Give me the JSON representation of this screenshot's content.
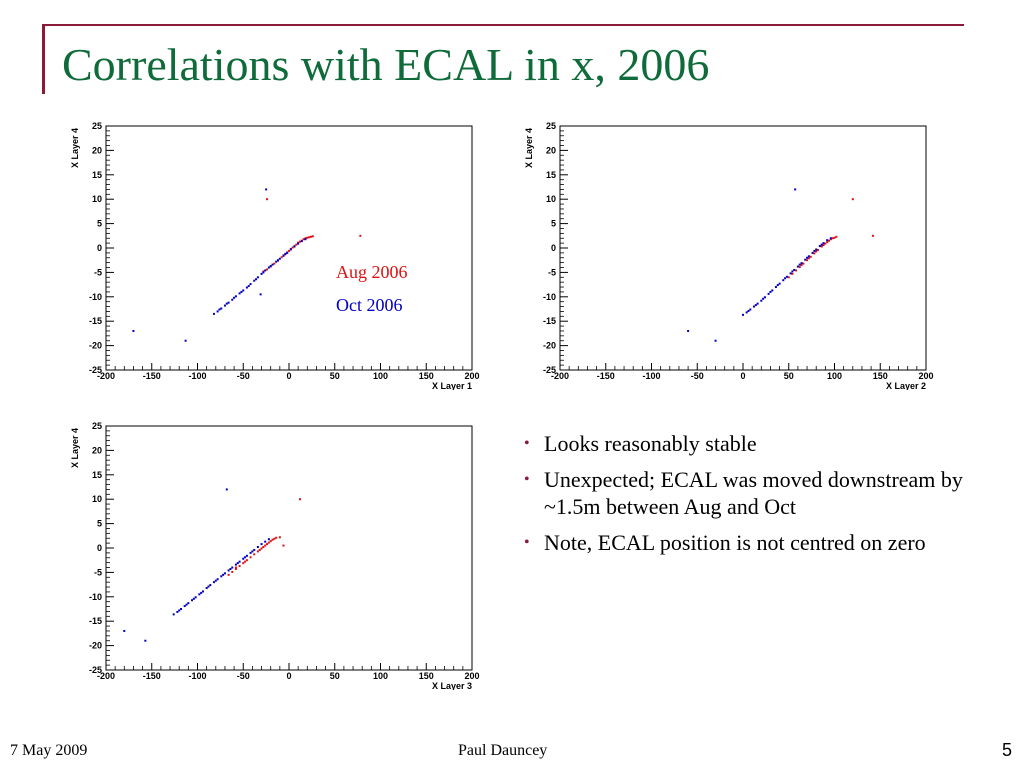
{
  "slide": {
    "title": "Correlations with ECAL in x, 2006",
    "footer_date": "7 May 2009",
    "footer_author": "Paul Dauncey",
    "page_number": "5"
  },
  "legend": {
    "aug_label": "Aug 2006",
    "aug_color": "#e01010",
    "oct_label": "Oct 2006",
    "oct_color": "#0000c0"
  },
  "bullets": [
    "Looks reasonably stable",
    "Unexpected; ECAL was moved downstream by ~1.5m between Aug and Oct",
    "Note, ECAL position is not centred on zero"
  ],
  "chart_data": [
    {
      "type": "scatter",
      "xlabel": "X Layer 1",
      "ylabel": "X Layer 4",
      "xlim": [
        -200,
        200
      ],
      "ylim": [
        -25,
        25
      ],
      "xticks": [
        -200,
        -150,
        -100,
        -50,
        0,
        50,
        100,
        150,
        200
      ],
      "yticks": [
        -25,
        -20,
        -15,
        -10,
        -5,
        0,
        5,
        10,
        15,
        20,
        25
      ],
      "series": [
        {
          "color": "#e01010",
          "points": [
            [
              -28,
              -4.8
            ],
            [
              -24,
              -4.4
            ],
            [
              -20,
              -3.8
            ],
            [
              -16,
              -3.2
            ],
            [
              -12,
              -2.6
            ],
            [
              -8,
              -1.9
            ],
            [
              -4,
              -1.3
            ],
            [
              0,
              -0.6
            ],
            [
              4,
              0.1
            ],
            [
              8,
              0.7
            ],
            [
              12,
              1.3
            ],
            [
              16,
              1.8
            ],
            [
              20,
              2.1
            ],
            [
              24,
              2.3
            ],
            [
              10,
              1.1
            ],
            [
              14,
              1.5
            ],
            [
              18,
              2.0
            ],
            [
              22,
              2.2
            ],
            [
              -6,
              -1.5
            ],
            [
              2,
              -0.2
            ],
            [
              6,
              0.4
            ],
            [
              26,
              2.4
            ],
            [
              -2,
              -0.9
            ],
            [
              78,
              2.5
            ],
            [
              -24,
              10
            ]
          ]
        },
        {
          "color": "#0000c0",
          "points": [
            [
              -82,
              -13.5
            ],
            [
              -78,
              -13
            ],
            [
              -74,
              -12.4
            ],
            [
              -70,
              -11.8
            ],
            [
              -66,
              -11.2
            ],
            [
              -62,
              -10.6
            ],
            [
              -58,
              -9.9
            ],
            [
              -54,
              -9.3
            ],
            [
              -50,
              -8.7
            ],
            [
              -46,
              -8.1
            ],
            [
              -42,
              -7.4
            ],
            [
              -38,
              -6.7
            ],
            [
              -34,
              -6.0
            ],
            [
              -30,
              -5.3
            ],
            [
              -26,
              -4.6
            ],
            [
              -22,
              -4.0
            ],
            [
              -18,
              -3.4
            ],
            [
              -14,
              -2.8
            ],
            [
              -10,
              -2.2
            ],
            [
              -6,
              -1.6
            ],
            [
              -2,
              -1.0
            ],
            [
              2,
              -0.3
            ],
            [
              6,
              0.3
            ],
            [
              10,
              0.9
            ],
            [
              14,
              1.4
            ],
            [
              18,
              1.8
            ],
            [
              -76,
              -12.6
            ],
            [
              -68,
              -11.4
            ],
            [
              -60,
              -10.2
            ],
            [
              -52,
              -9.0
            ],
            [
              -44,
              -7.8
            ],
            [
              -36,
              -6.4
            ],
            [
              -28,
              -5.0
            ],
            [
              -20,
              -3.7
            ],
            [
              -12,
              -2.5
            ],
            [
              -4,
              -1.2
            ],
            [
              -31,
              -9.5
            ],
            [
              -25,
              12
            ],
            [
              -170,
              -17
            ],
            [
              -113,
              -19
            ]
          ]
        }
      ]
    },
    {
      "type": "scatter",
      "xlabel": "X Layer 2",
      "ylabel": "X Layer 4",
      "xlim": [
        -200,
        200
      ],
      "ylim": [
        -25,
        25
      ],
      "xticks": [
        -200,
        -150,
        -100,
        -50,
        0,
        50,
        100,
        150,
        200
      ],
      "yticks": [
        -25,
        -20,
        -15,
        -10,
        -5,
        0,
        5,
        10,
        15,
        20,
        25
      ],
      "series": [
        {
          "color": "#e01010",
          "points": [
            [
              50,
              -6.0
            ],
            [
              54,
              -5.3
            ],
            [
              58,
              -4.6
            ],
            [
              62,
              -3.9
            ],
            [
              66,
              -3.2
            ],
            [
              70,
              -2.5
            ],
            [
              74,
              -1.8
            ],
            [
              78,
              -1.1
            ],
            [
              82,
              -0.4
            ],
            [
              86,
              0.3
            ],
            [
              90,
              0.9
            ],
            [
              94,
              1.5
            ],
            [
              98,
              2.0
            ],
            [
              102,
              2.3
            ],
            [
              88,
              0.6
            ],
            [
              92,
              1.2
            ],
            [
              96,
              1.8
            ],
            [
              100,
              2.1
            ],
            [
              64,
              -3.5
            ],
            [
              72,
              -2.1
            ],
            [
              80,
              -0.7
            ],
            [
              142,
              2.5
            ],
            [
              120,
              10
            ]
          ]
        },
        {
          "color": "#0000c0",
          "points": [
            [
              0,
              -13.7
            ],
            [
              4,
              -13.2
            ],
            [
              8,
              -12.6
            ],
            [
              12,
              -12.0
            ],
            [
              16,
              -11.4
            ],
            [
              20,
              -10.8
            ],
            [
              24,
              -10.1
            ],
            [
              28,
              -9.4
            ],
            [
              32,
              -8.7
            ],
            [
              36,
              -8.0
            ],
            [
              40,
              -7.3
            ],
            [
              44,
              -6.6
            ],
            [
              48,
              -5.9
            ],
            [
              52,
              -5.2
            ],
            [
              56,
              -4.5
            ],
            [
              60,
              -3.8
            ],
            [
              64,
              -3.1
            ],
            [
              68,
              -2.4
            ],
            [
              72,
              -1.7
            ],
            [
              76,
              -1.0
            ],
            [
              80,
              -0.3
            ],
            [
              84,
              0.4
            ],
            [
              88,
              1.0
            ],
            [
              92,
              1.6
            ],
            [
              96,
              2.0
            ],
            [
              6,
              -12.9
            ],
            [
              14,
              -11.7
            ],
            [
              22,
              -10.4
            ],
            [
              30,
              -9.0
            ],
            [
              38,
              -7.6
            ],
            [
              46,
              -6.2
            ],
            [
              54,
              -4.8
            ],
            [
              62,
              -3.4
            ],
            [
              70,
              -2.0
            ],
            [
              78,
              -0.6
            ],
            [
              86,
              0.7
            ],
            [
              57,
              12
            ],
            [
              -60,
              -17
            ],
            [
              -30,
              -19
            ]
          ]
        }
      ]
    },
    {
      "type": "scatter",
      "xlabel": "X Layer 3",
      "ylabel": "X Layer 4",
      "xlim": [
        -200,
        200
      ],
      "ylim": [
        -25,
        25
      ],
      "xticks": [
        -200,
        -150,
        -100,
        -50,
        0,
        50,
        100,
        150,
        200
      ],
      "yticks": [
        -25,
        -20,
        -15,
        -10,
        -5,
        0,
        5,
        10,
        15,
        20,
        25
      ],
      "series": [
        {
          "color": "#e01010",
          "points": [
            [
              -66,
              -5.5
            ],
            [
              -62,
              -4.9
            ],
            [
              -58,
              -4.3
            ],
            [
              -54,
              -3.7
            ],
            [
              -50,
              -3.1
            ],
            [
              -46,
              -2.5
            ],
            [
              -42,
              -1.9
            ],
            [
              -38,
              -1.3
            ],
            [
              -34,
              -0.7
            ],
            [
              -30,
              -0.1
            ],
            [
              -26,
              0.5
            ],
            [
              -22,
              1.1
            ],
            [
              -18,
              1.7
            ],
            [
              -14,
              2.1
            ],
            [
              -32,
              -0.4
            ],
            [
              -28,
              0.2
            ],
            [
              -24,
              0.8
            ],
            [
              -20,
              1.4
            ],
            [
              -16,
              1.9
            ],
            [
              -10,
              2.2
            ],
            [
              -58,
              -4.0
            ],
            [
              -48,
              -2.8
            ],
            [
              -6,
              0.5
            ],
            [
              12,
              10
            ]
          ]
        },
        {
          "color": "#0000c0",
          "points": [
            [
              -126,
              -13.6
            ],
            [
              -122,
              -13.1
            ],
            [
              -118,
              -12.5
            ],
            [
              -114,
              -11.9
            ],
            [
              -110,
              -11.3
            ],
            [
              -106,
              -10.7
            ],
            [
              -102,
              -10.1
            ],
            [
              -98,
              -9.5
            ],
            [
              -94,
              -8.9
            ],
            [
              -90,
              -8.2
            ],
            [
              -86,
              -7.6
            ],
            [
              -82,
              -7.0
            ],
            [
              -78,
              -6.4
            ],
            [
              -74,
              -5.8
            ],
            [
              -70,
              -5.2
            ],
            [
              -66,
              -4.6
            ],
            [
              -62,
              -4.0
            ],
            [
              -58,
              -3.4
            ],
            [
              -54,
              -2.8
            ],
            [
              -50,
              -2.2
            ],
            [
              -46,
              -1.6
            ],
            [
              -42,
              -1.0
            ],
            [
              -38,
              -0.4
            ],
            [
              -34,
              0.2
            ],
            [
              -30,
              0.8
            ],
            [
              -26,
              1.3
            ],
            [
              -22,
              1.8
            ],
            [
              -120,
              -12.8
            ],
            [
              -112,
              -11.6
            ],
            [
              -104,
              -10.4
            ],
            [
              -96,
              -9.2
            ],
            [
              -88,
              -7.9
            ],
            [
              -80,
              -6.7
            ],
            [
              -72,
              -5.5
            ],
            [
              -64,
              -4.3
            ],
            [
              -56,
              -3.1
            ],
            [
              -48,
              -1.9
            ],
            [
              -40,
              -0.7
            ],
            [
              -68,
              12
            ],
            [
              -180,
              -17
            ],
            [
              -157,
              -19
            ]
          ]
        }
      ]
    }
  ]
}
